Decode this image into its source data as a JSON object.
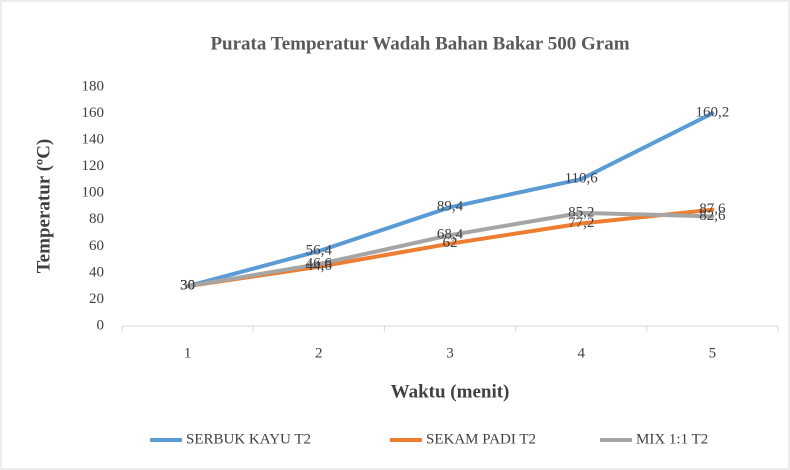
{
  "chart_data": {
    "type": "line",
    "title": "Purata Temperatur Wadah Bahan Bakar 500 Gram",
    "x_label": "Waktu (menit)",
    "y_label": "Temperatur (ºC)",
    "categories": [
      "1",
      "2",
      "3",
      "4",
      "5"
    ],
    "series": [
      {
        "name": "SERBUK KAYU T2",
        "color": "#5b9bd5",
        "values": [
          30,
          56.4,
          89.4,
          110.6,
          160.2
        ],
        "value_labels": [
          "30",
          "56,4",
          "89,4",
          "110,6",
          "160,2"
        ]
      },
      {
        "name": "SEKAM PADI T2",
        "color": "#ed7d31",
        "values": [
          30,
          44.6,
          62,
          77.2,
          87.6
        ],
        "value_labels": [
          "30",
          "44,6",
          "62",
          "77,2",
          "87,6"
        ]
      },
      {
        "name": "MIX 1:1 T2",
        "color": "#a5a5a5",
        "values": [
          30,
          46.6,
          68.4,
          85.2,
          82.6
        ],
        "value_labels": [
          "30",
          "46,6",
          "68,4",
          "85,2",
          "82,6"
        ]
      }
    ],
    "ylim": [
      0,
      180
    ],
    "yticks": [
      0,
      20,
      40,
      60,
      80,
      100,
      120,
      140,
      160,
      180
    ],
    "grid": false,
    "legend": "bottom"
  }
}
